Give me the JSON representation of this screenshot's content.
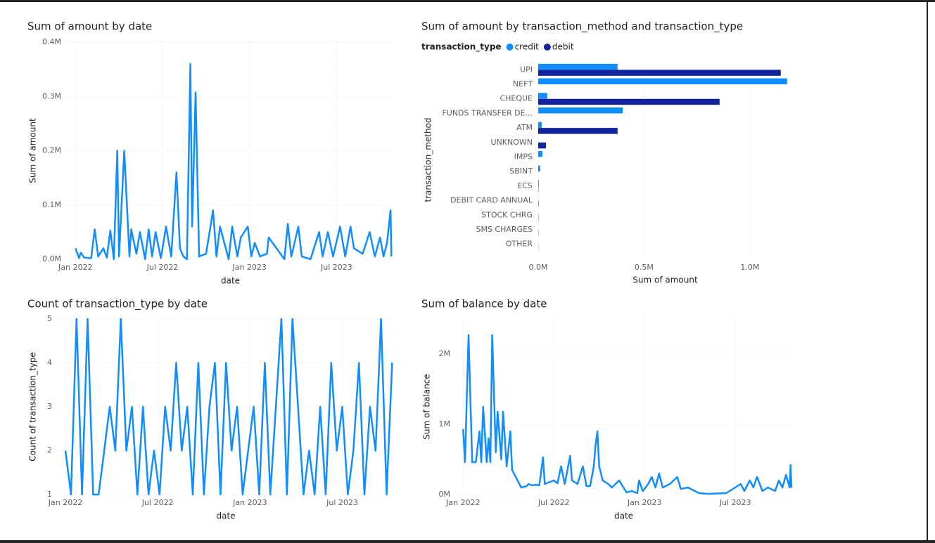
{
  "chart_data": [
    {
      "type": "line",
      "title": "Sum of amount by date",
      "x_label": "date",
      "y_label": "Sum of amount",
      "color": "#118DFF",
      "grid": true,
      "xlim": [
        2021.95,
        2023.83
      ],
      "xticks": [
        {
          "value": 2022.0,
          "label": "Jan 2022"
        },
        {
          "value": 2022.5,
          "label": "Jul 2022"
        },
        {
          "value": 2023.0,
          "label": "Jan 2023"
        },
        {
          "value": 2023.5,
          "label": "Jul 2023"
        }
      ],
      "ylim": [
        0,
        400000
      ],
      "yticks": [
        {
          "value": 0,
          "label": "0.0M"
        },
        {
          "value": 100000,
          "label": "0.1M"
        },
        {
          "value": 200000,
          "label": "0.2M"
        },
        {
          "value": 300000,
          "label": "0.3M"
        },
        {
          "value": 400000,
          "label": "0.4M"
        }
      ],
      "x": [
        2022.0,
        2022.02,
        2022.03,
        2022.05,
        2022.09,
        2022.11,
        2022.13,
        2022.16,
        2022.18,
        2022.2,
        2022.22,
        2022.24,
        2022.25,
        2022.28,
        2022.31,
        2022.32,
        2022.35,
        2022.37,
        2022.4,
        2022.42,
        2022.44,
        2022.46,
        2022.49,
        2022.5,
        2022.52,
        2022.55,
        2022.58,
        2022.6,
        2022.62,
        2022.64,
        2022.66,
        2022.67,
        2022.69,
        2022.71,
        2022.75,
        2022.79,
        2022.81,
        2022.83,
        2022.88,
        2022.9,
        2022.93,
        2022.95,
        2022.99,
        2023.01,
        2023.03,
        2023.06,
        2023.1,
        2023.11,
        2023.2,
        2023.22,
        2023.24,
        2023.28,
        2023.3,
        2023.35,
        2023.4,
        2023.42,
        2023.45,
        2023.48,
        2023.52,
        2023.55,
        2023.58,
        2023.6,
        2023.65,
        2023.69,
        2023.72,
        2023.75,
        2023.77,
        2023.79,
        2023.81,
        2023.815
      ],
      "values": [
        20000,
        2000,
        12000,
        3000,
        2000,
        55000,
        5000,
        20000,
        3000,
        53000,
        0,
        200000,
        5000,
        200000,
        5000,
        55000,
        10000,
        50000,
        0,
        55000,
        5000,
        50000,
        2000,
        20000,
        60000,
        5000,
        160000,
        20000,
        5000,
        0,
        360000,
        60000,
        307000,
        5000,
        10000,
        90000,
        5000,
        60000,
        0,
        60000,
        5000,
        40000,
        60000,
        5000,
        30000,
        5000,
        10000,
        40000,
        0,
        65000,
        5000,
        60000,
        5000,
        0,
        50000,
        5000,
        50000,
        5000,
        60000,
        5000,
        60000,
        20000,
        10000,
        50000,
        5000,
        40000,
        5000,
        30000,
        90000,
        5000
      ]
    },
    {
      "type": "bar",
      "orientation": "horizontal",
      "title": "Sum of amount by transaction_method and transaction_type",
      "x_label": "Sum of amount",
      "y_label": "transaction_method",
      "legend_title": "transaction_type",
      "grid": true,
      "categories": [
        "UPI",
        "NEFT",
        "CHEQUE",
        "FUNDS TRANSFER DE...",
        "ATM",
        "UNKNOWN",
        "IMPS",
        "SBINT",
        "ECS",
        "DEBIT CARD ANNUAL",
        "STOCK CHRG",
        "SMS CHARGES",
        "OTHER"
      ],
      "xlim": [
        0,
        1200000
      ],
      "xticks": [
        {
          "value": 0,
          "label": "0.0M"
        },
        {
          "value": 500000,
          "label": "0.5M"
        },
        {
          "value": 1000000,
          "label": "1.0M"
        }
      ],
      "series": [
        {
          "name": "credit",
          "color": "#118DFF",
          "values": [
            375000,
            1176000,
            43000,
            399000,
            17000,
            0,
            20000,
            10000,
            3000,
            0,
            0,
            0,
            0
          ]
        },
        {
          "name": "debit",
          "color": "#12239E",
          "values": [
            1146000,
            0,
            857000,
            0,
            375000,
            37000,
            0,
            0,
            1000,
            1500,
            1000,
            800,
            500
          ]
        }
      ]
    },
    {
      "type": "line",
      "title": "Count of transaction_type by date",
      "x_label": "date",
      "y_label": "Count of transaction_type",
      "color": "#118DFF",
      "grid": true,
      "xlim": [
        2021.958,
        2023.78
      ],
      "xticks": [
        {
          "value": 2022.0,
          "label": "Jan 2022"
        },
        {
          "value": 2022.5,
          "label": "Jul 2022"
        },
        {
          "value": 2023.0,
          "label": "Jan 2023"
        },
        {
          "value": 2023.5,
          "label": "Jul 2023"
        }
      ],
      "ylim": [
        1,
        5
      ],
      "yticks": [
        1,
        2,
        3,
        4,
        5
      ],
      "x": [
        2022,
        2022.03,
        2022.06,
        2022.09,
        2022.12,
        2022.15,
        2022.18,
        2022.21,
        2022.24,
        2022.27,
        2022.3,
        2022.33,
        2022.36,
        2022.39,
        2022.42,
        2022.45,
        2022.48,
        2022.51,
        2022.54,
        2022.57,
        2022.6,
        2022.63,
        2022.66,
        2022.69,
        2022.72,
        2022.75,
        2022.78,
        2022.81,
        2022.84,
        2022.87,
        2022.9,
        2022.93,
        2022.96,
        2022.99,
        2023.02,
        2023.05,
        2023.08,
        2023.11,
        2023.14,
        2023.17,
        2023.2,
        2023.23,
        2023.26,
        2023.29,
        2023.32,
        2023.35,
        2023.38,
        2023.41,
        2023.44,
        2023.47,
        2023.5,
        2023.53,
        2023.56,
        2023.59,
        2023.62,
        2023.65,
        2023.68,
        2023.71,
        2023.74,
        2023.77
      ],
      "values": [
        2,
        1,
        5,
        1,
        5,
        1,
        1,
        2,
        3,
        2,
        5,
        2,
        3,
        1,
        3,
        1,
        2,
        1,
        3,
        2,
        4,
        2,
        3,
        1,
        4,
        1,
        3,
        4,
        1,
        4,
        2,
        3,
        1,
        2,
        3,
        1,
        4,
        1,
        3,
        5,
        1,
        5,
        3,
        1,
        2,
        1,
        3,
        1,
        4,
        2,
        3,
        1,
        2,
        4,
        1,
        3,
        2,
        5,
        1,
        4
      ]
    },
    {
      "type": "line",
      "title": "Sum of balance by date",
      "x_label": "date",
      "y_label": "Sum of balance",
      "color": "#118DFF",
      "grid": true,
      "xlim": [
        2021.96,
        2023.81
      ],
      "xticks": [
        {
          "value": 2022.0,
          "label": "Jan 2022"
        },
        {
          "value": 2022.5,
          "label": "Jul 2022"
        },
        {
          "value": 2023.0,
          "label": "Jan 2023"
        },
        {
          "value": 2023.5,
          "label": "Jul 2023"
        }
      ],
      "ylim": [
        0,
        2500000
      ],
      "yticks": [
        {
          "value": 0,
          "label": "0M"
        },
        {
          "value": 1000000,
          "label": "1M"
        },
        {
          "value": 2000000,
          "label": "2M"
        }
      ],
      "x": [
        2022.0,
        2022.01,
        2022.03,
        2022.05,
        2022.07,
        2022.09,
        2022.1,
        2022.11,
        2022.13,
        2022.14,
        2022.15,
        2022.16,
        2022.18,
        2022.19,
        2022.21,
        2022.22,
        2022.24,
        2022.26,
        2022.27,
        2022.29,
        2022.32,
        2022.35,
        2022.36,
        2022.38,
        2022.4,
        2022.42,
        2022.44,
        2022.45,
        2022.5,
        2022.52,
        2022.54,
        2022.56,
        2022.59,
        2022.6,
        2022.63,
        2022.66,
        2022.68,
        2022.7,
        2022.72,
        2022.73,
        2022.74,
        2022.75,
        2022.77,
        2022.8,
        2022.82,
        2022.86,
        2022.9,
        2022.93,
        2022.96,
        2022.97,
        2022.99,
        2023.02,
        2023.04,
        2023.06,
        2023.08,
        2023.1,
        2023.14,
        2023.18,
        2023.2,
        2023.24,
        2023.3,
        2023.35,
        2023.45,
        2023.5,
        2023.53,
        2023.55,
        2023.58,
        2023.6,
        2023.62,
        2023.65,
        2023.68,
        2023.72,
        2023.74,
        2023.76,
        2023.78,
        2023.8,
        2023.805,
        2023.81
      ],
      "values": [
        930000,
        460000,
        2270000,
        460000,
        460000,
        900000,
        460000,
        1250000,
        460000,
        800000,
        460000,
        2270000,
        600000,
        1180000,
        500000,
        1180000,
        400000,
        900000,
        350000,
        250000,
        100000,
        120000,
        150000,
        130000,
        140000,
        130000,
        530000,
        150000,
        200000,
        160000,
        400000,
        150000,
        550000,
        200000,
        150000,
        400000,
        120000,
        120000,
        400000,
        700000,
        900000,
        400000,
        200000,
        150000,
        100000,
        200000,
        30000,
        50000,
        20000,
        200000,
        50000,
        150000,
        250000,
        100000,
        300000,
        100000,
        150000,
        250000,
        80000,
        100000,
        20000,
        10000,
        20000,
        100000,
        150000,
        50000,
        200000,
        100000,
        250000,
        50000,
        100000,
        50000,
        200000,
        100000,
        280000,
        100000,
        420000,
        100000
      ]
    }
  ]
}
